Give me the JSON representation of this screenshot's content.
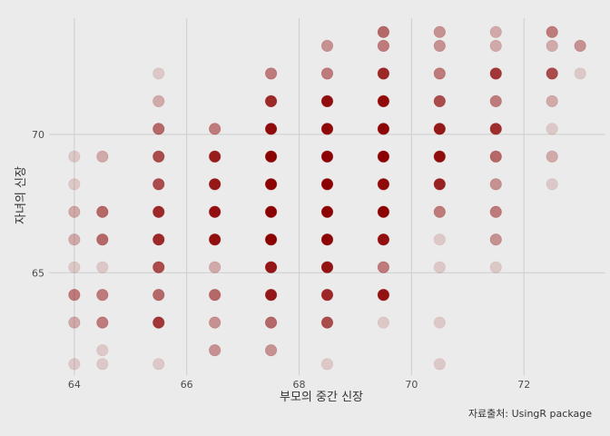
{
  "chart_data": {
    "type": "scatter",
    "title": "",
    "xlabel": "부모의 중간 신장",
    "ylabel": "자녀의 신장",
    "caption": "자료출처: UsingR package",
    "xlim": [
      63.55,
      73.45
    ],
    "ylim": [
      61.3,
      74.2
    ],
    "x_ticks": [
      64,
      66,
      68,
      70,
      72
    ],
    "y_ticks": [
      65,
      70
    ],
    "x_tick_labels": [
      "64",
      "66",
      "68",
      "70",
      "72"
    ],
    "y_tick_labels": [
      "65",
      "70"
    ],
    "grid": true,
    "legend": "none",
    "point_color": "#8b0000",
    "point_alpha": 0.15,
    "points": [
      {
        "x": 64,
        "y": 61.7,
        "n": 1
      },
      {
        "x": 64,
        "y": 63.2,
        "n": 2
      },
      {
        "x": 64,
        "y": 64.2,
        "n": 4
      },
      {
        "x": 64,
        "y": 65.2,
        "n": 1
      },
      {
        "x": 64,
        "y": 66.2,
        "n": 2
      },
      {
        "x": 64,
        "y": 67.2,
        "n": 2
      },
      {
        "x": 64,
        "y": 68.2,
        "n": 1
      },
      {
        "x": 64,
        "y": 69.2,
        "n": 1
      },
      {
        "x": 64.5,
        "y": 61.7,
        "n": 1
      },
      {
        "x": 64.5,
        "y": 62.2,
        "n": 1
      },
      {
        "x": 64.5,
        "y": 63.2,
        "n": 4
      },
      {
        "x": 64.5,
        "y": 64.2,
        "n": 4
      },
      {
        "x": 64.5,
        "y": 65.2,
        "n": 1
      },
      {
        "x": 64.5,
        "y": 66.2,
        "n": 5
      },
      {
        "x": 64.5,
        "y": 67.2,
        "n": 5
      },
      {
        "x": 64.5,
        "y": 69.2,
        "n": 2
      },
      {
        "x": 65.5,
        "y": 61.7,
        "n": 1
      },
      {
        "x": 65.5,
        "y": 63.2,
        "n": 9
      },
      {
        "x": 65.5,
        "y": 64.2,
        "n": 5
      },
      {
        "x": 65.5,
        "y": 65.2,
        "n": 7
      },
      {
        "x": 65.5,
        "y": 66.2,
        "n": 11
      },
      {
        "x": 65.5,
        "y": 67.2,
        "n": 11
      },
      {
        "x": 65.5,
        "y": 68.2,
        "n": 7
      },
      {
        "x": 65.5,
        "y": 69.2,
        "n": 7
      },
      {
        "x": 65.5,
        "y": 70.2,
        "n": 5
      },
      {
        "x": 65.5,
        "y": 71.2,
        "n": 2
      },
      {
        "x": 65.5,
        "y": 72.2,
        "n": 1
      },
      {
        "x": 66.5,
        "y": 62.2,
        "n": 3
      },
      {
        "x": 66.5,
        "y": 63.2,
        "n": 3
      },
      {
        "x": 66.5,
        "y": 64.2,
        "n": 5
      },
      {
        "x": 66.5,
        "y": 65.2,
        "n": 2
      },
      {
        "x": 66.5,
        "y": 66.2,
        "n": 17
      },
      {
        "x": 66.5,
        "y": 67.2,
        "n": 17
      },
      {
        "x": 66.5,
        "y": 68.2,
        "n": 14
      },
      {
        "x": 66.5,
        "y": 69.2,
        "n": 13
      },
      {
        "x": 66.5,
        "y": 70.2,
        "n": 4
      },
      {
        "x": 67.5,
        "y": 62.2,
        "n": 3
      },
      {
        "x": 67.5,
        "y": 63.2,
        "n": 5
      },
      {
        "x": 67.5,
        "y": 64.2,
        "n": 14
      },
      {
        "x": 67.5,
        "y": 65.2,
        "n": 15
      },
      {
        "x": 67.5,
        "y": 66.2,
        "n": 36
      },
      {
        "x": 67.5,
        "y": 67.2,
        "n": 38
      },
      {
        "x": 67.5,
        "y": 68.2,
        "n": 28
      },
      {
        "x": 67.5,
        "y": 69.2,
        "n": 38
      },
      {
        "x": 67.5,
        "y": 70.2,
        "n": 19
      },
      {
        "x": 67.5,
        "y": 71.2,
        "n": 11
      },
      {
        "x": 67.5,
        "y": 72.2,
        "n": 4
      },
      {
        "x": 68.5,
        "y": 61.7,
        "n": 1
      },
      {
        "x": 68.5,
        "y": 63.2,
        "n": 7
      },
      {
        "x": 68.5,
        "y": 64.2,
        "n": 11
      },
      {
        "x": 68.5,
        "y": 65.2,
        "n": 16
      },
      {
        "x": 68.5,
        "y": 66.2,
        "n": 25
      },
      {
        "x": 68.5,
        "y": 67.2,
        "n": 31
      },
      {
        "x": 68.5,
        "y": 68.2,
        "n": 34
      },
      {
        "x": 68.5,
        "y": 69.2,
        "n": 48
      },
      {
        "x": 68.5,
        "y": 70.2,
        "n": 21
      },
      {
        "x": 68.5,
        "y": 71.2,
        "n": 18
      },
      {
        "x": 68.5,
        "y": 72.2,
        "n": 4
      },
      {
        "x": 68.5,
        "y": 73.2,
        "n": 3
      },
      {
        "x": 69.5,
        "y": 63.2,
        "n": 1
      },
      {
        "x": 69.5,
        "y": 64.2,
        "n": 16
      },
      {
        "x": 69.5,
        "y": 65.2,
        "n": 4
      },
      {
        "x": 69.5,
        "y": 66.2,
        "n": 17
      },
      {
        "x": 69.5,
        "y": 67.2,
        "n": 27
      },
      {
        "x": 69.5,
        "y": 68.2,
        "n": 20
      },
      {
        "x": 69.5,
        "y": 69.2,
        "n": 33
      },
      {
        "x": 69.5,
        "y": 70.2,
        "n": 25
      },
      {
        "x": 69.5,
        "y": 71.2,
        "n": 20
      },
      {
        "x": 69.5,
        "y": 72.2,
        "n": 11
      },
      {
        "x": 69.5,
        "y": 73.2,
        "n": 4
      },
      {
        "x": 69.5,
        "y": 73.7,
        "n": 5
      },
      {
        "x": 70.5,
        "y": 61.7,
        "n": 1
      },
      {
        "x": 70.5,
        "y": 63.2,
        "n": 1
      },
      {
        "x": 70.5,
        "y": 65.2,
        "n": 1
      },
      {
        "x": 70.5,
        "y": 66.2,
        "n": 1
      },
      {
        "x": 70.5,
        "y": 67.2,
        "n": 4
      },
      {
        "x": 70.5,
        "y": 68.2,
        "n": 12
      },
      {
        "x": 70.5,
        "y": 69.2,
        "n": 18
      },
      {
        "x": 70.5,
        "y": 70.2,
        "n": 14
      },
      {
        "x": 70.5,
        "y": 71.2,
        "n": 7
      },
      {
        "x": 70.5,
        "y": 72.2,
        "n": 4
      },
      {
        "x": 70.5,
        "y": 73.2,
        "n": 3
      },
      {
        "x": 70.5,
        "y": 73.7,
        "n": 3
      },
      {
        "x": 71.5,
        "y": 65.2,
        "n": 1
      },
      {
        "x": 71.5,
        "y": 66.2,
        "n": 3
      },
      {
        "x": 71.5,
        "y": 67.2,
        "n": 4
      },
      {
        "x": 71.5,
        "y": 68.2,
        "n": 3
      },
      {
        "x": 71.5,
        "y": 69.2,
        "n": 5
      },
      {
        "x": 71.5,
        "y": 70.2,
        "n": 10
      },
      {
        "x": 71.5,
        "y": 71.2,
        "n": 4
      },
      {
        "x": 71.5,
        "y": 72.2,
        "n": 9
      },
      {
        "x": 71.5,
        "y": 73.2,
        "n": 2
      },
      {
        "x": 71.5,
        "y": 73.7,
        "n": 2
      },
      {
        "x": 72.5,
        "y": 68.2,
        "n": 1
      },
      {
        "x": 72.5,
        "y": 69.2,
        "n": 2
      },
      {
        "x": 72.5,
        "y": 70.2,
        "n": 1
      },
      {
        "x": 72.5,
        "y": 71.2,
        "n": 2
      },
      {
        "x": 72.5,
        "y": 72.2,
        "n": 7
      },
      {
        "x": 72.5,
        "y": 73.2,
        "n": 2
      },
      {
        "x": 72.5,
        "y": 73.7,
        "n": 4
      },
      {
        "x": 73,
        "y": 72.2,
        "n": 1
      },
      {
        "x": 73,
        "y": 73.2,
        "n": 3
      }
    ]
  }
}
